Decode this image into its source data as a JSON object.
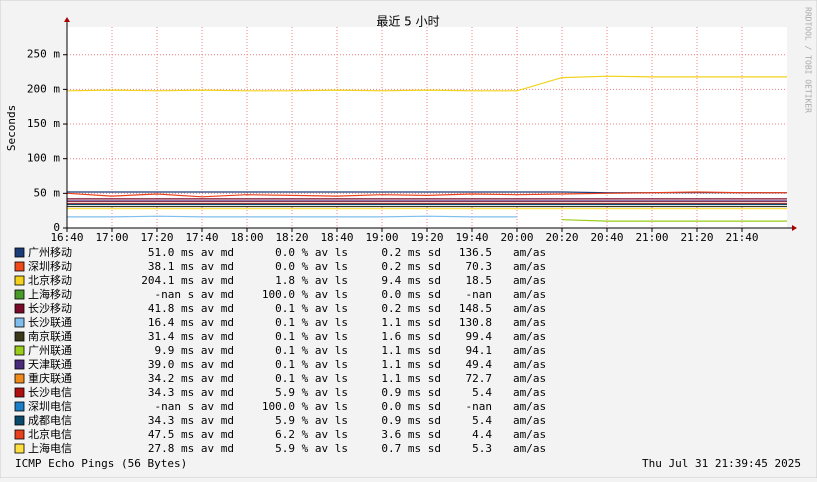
{
  "chart_data": {
    "type": "line",
    "title": "最近 5 小时",
    "y_label": "Seconds",
    "watermark": "RRDTOOL / TOBI OETIKER",
    "footer": "ICMP Echo Pings (56 Bytes)",
    "timestamp": "Thu Jul 31 21:39:45 2025",
    "ratio_unit": "am/as",
    "grid": true,
    "x": [
      "16:40",
      "17:00",
      "17:20",
      "17:40",
      "18:00",
      "18:20",
      "18:40",
      "19:00",
      "19:20",
      "19:40",
      "20:00",
      "20:20",
      "20:40",
      "21:00",
      "21:20",
      "21:40",
      "22:00"
    ],
    "xlim": [
      "16:40",
      "22:00"
    ],
    "xticks": [
      "16:40",
      "17:00",
      "17:20",
      "17:40",
      "18:00",
      "18:20",
      "18:40",
      "19:00",
      "19:20",
      "19:40",
      "20:00",
      "20:20",
      "20:40",
      "21:00",
      "21:20",
      "21:40"
    ],
    "ylim": [
      0,
      0.29
    ],
    "yticks": [
      0,
      {
        "value": 0.05,
        "label": "50 m"
      },
      {
        "value": 0.1,
        "label": "100 m"
      },
      {
        "value": 0.15,
        "label": "150 m"
      },
      {
        "value": 0.2,
        "label": "200 m"
      },
      {
        "value": 0.25,
        "label": "250 m"
      }
    ],
    "series": [
      {
        "name": "广州移动",
        "color": "#1a3c78",
        "median": "51.0 ms av md",
        "loss": "0.0 % av ls",
        "sd": "0.2 ms sd",
        "ratio": "136.5",
        "values": [
          0.052,
          0.052,
          0.052,
          0.052,
          0.052,
          0.052,
          0.052,
          0.052,
          0.052,
          0.052,
          0.052,
          0.052,
          0.051,
          0.051,
          0.051,
          0.051,
          0.051
        ]
      },
      {
        "name": "深圳移动",
        "color": "#f04a1a",
        "median": "38.1 ms av md",
        "loss": "0.0 % av ls",
        "sd": "0.2 ms sd",
        "ratio": "70.3",
        "values": [
          0.038,
          0.038,
          0.038,
          0.038,
          0.038,
          0.038,
          0.038,
          0.038,
          0.038,
          0.038,
          0.038,
          0.038,
          0.038,
          0.038,
          0.038,
          0.038,
          0.038
        ]
      },
      {
        "name": "北京移动",
        "color": "#f2d21c",
        "median": "204.1 ms av md",
        "loss": "1.8 % av ls",
        "sd": "9.4 ms sd",
        "ratio": "18.5",
        "values": [
          0.198,
          0.199,
          0.198,
          0.199,
          0.198,
          0.198,
          0.199,
          0.198,
          0.199,
          0.198,
          0.198,
          0.217,
          0.219,
          0.218,
          0.218,
          0.218,
          0.218
        ]
      },
      {
        "name": "上海移动",
        "color": "#4a9a2a",
        "median": "-nan  s av md",
        "loss": "100.0 % av ls",
        "sd": "0.0 ms sd",
        "ratio": "-nan",
        "values": [
          null,
          null,
          null,
          null,
          null,
          null,
          null,
          null,
          null,
          null,
          null,
          null,
          null,
          null,
          null,
          null,
          null
        ]
      },
      {
        "name": "长沙移动",
        "color": "#7a0a2a",
        "median": "41.8 ms av md",
        "loss": "0.1 % av ls",
        "sd": "0.2 ms sd",
        "ratio": "148.5",
        "values": [
          0.042,
          0.042,
          0.042,
          0.042,
          0.042,
          0.042,
          0.042,
          0.042,
          0.042,
          0.042,
          0.042,
          0.042,
          0.042,
          0.042,
          0.042,
          0.042,
          0.042
        ]
      },
      {
        "name": "长沙联通",
        "color": "#7fbfef",
        "median": "16.4 ms av md",
        "loss": "0.1 % av ls",
        "sd": "1.1 ms sd",
        "ratio": "130.8",
        "values": [
          0.016,
          0.016,
          0.017,
          0.016,
          0.016,
          0.016,
          0.016,
          0.016,
          0.017,
          0.016,
          0.016,
          null,
          null,
          null,
          null,
          null,
          null
        ]
      },
      {
        "name": "南京联通",
        "color": "#3a3a1a",
        "median": "31.4 ms av md",
        "loss": "0.1 % av ls",
        "sd": "1.6 ms sd",
        "ratio": "99.4",
        "values": [
          0.031,
          0.031,
          0.031,
          0.031,
          0.031,
          0.031,
          0.031,
          0.031,
          0.031,
          0.031,
          0.031,
          0.031,
          0.031,
          0.031,
          0.031,
          0.031,
          0.031
        ]
      },
      {
        "name": "广州联通",
        "color": "#9acd1a",
        "median": "9.9 ms av md",
        "loss": "0.1 % av ls",
        "sd": "1.1 ms sd",
        "ratio": "94.1",
        "values": [
          null,
          null,
          null,
          null,
          null,
          null,
          null,
          null,
          null,
          null,
          null,
          0.012,
          0.0099,
          0.0099,
          0.0099,
          0.0099,
          0.0099
        ]
      },
      {
        "name": "天津联通",
        "color": "#4a2a7a",
        "median": "39.0 ms av md",
        "loss": "0.1 % av ls",
        "sd": "1.1 ms sd",
        "ratio": "49.4",
        "values": [
          0.039,
          0.039,
          0.039,
          0.039,
          0.039,
          0.039,
          0.039,
          0.039,
          0.039,
          0.039,
          0.039,
          0.039,
          0.039,
          0.039,
          0.039,
          0.039,
          0.039
        ]
      },
      {
        "name": "重庆联通",
        "color": "#f08a1a",
        "median": "34.2 ms av md",
        "loss": "0.1 % av ls",
        "sd": "1.1 ms sd",
        "ratio": "72.7",
        "values": [
          0.034,
          0.034,
          0.034,
          0.034,
          0.034,
          0.034,
          0.034,
          0.034,
          0.034,
          0.034,
          0.034,
          0.034,
          0.034,
          0.034,
          0.034,
          0.034,
          0.034
        ]
      },
      {
        "name": "长沙电信",
        "color": "#b01010",
        "median": "34.3 ms av md",
        "loss": "5.9 % av ls",
        "sd": "0.9 ms sd",
        "ratio": "5.4",
        "values": [
          0.035,
          0.035,
          0.035,
          0.035,
          0.035,
          0.035,
          0.035,
          0.035,
          0.035,
          0.035,
          0.035,
          0.035,
          0.035,
          0.035,
          0.035,
          0.035,
          0.035
        ]
      },
      {
        "name": "深圳电信",
        "color": "#1a7fc8",
        "median": "-nan  s av md",
        "loss": "100.0 % av ls",
        "sd": "0.0 ms sd",
        "ratio": "-nan",
        "values": [
          null,
          null,
          null,
          null,
          null,
          null,
          null,
          null,
          null,
          null,
          null,
          null,
          null,
          null,
          null,
          null,
          null
        ]
      },
      {
        "name": "成都电信",
        "color": "#0a4a6a",
        "median": "34.3 ms av md",
        "loss": "5.9 % av ls",
        "sd": "0.9 ms sd",
        "ratio": "5.4",
        "values": [
          0.034,
          0.034,
          0.034,
          0.034,
          0.034,
          0.034,
          0.034,
          0.034,
          0.034,
          0.034,
          0.034,
          0.034,
          0.034,
          0.034,
          0.034,
          0.034,
          0.034
        ]
      },
      {
        "name": "北京电信",
        "color": "#e8401c",
        "median": "47.5 ms av md",
        "loss": "6.2 % av ls",
        "sd": "3.6 ms sd",
        "ratio": "4.4",
        "values": [
          0.05,
          0.046,
          0.049,
          0.045,
          0.048,
          0.047,
          0.046,
          0.048,
          0.047,
          0.049,
          0.048,
          0.049,
          0.05,
          0.051,
          0.052,
          0.051,
          0.051
        ]
      },
      {
        "name": "上海电信",
        "color": "#ffe040",
        "median": "27.8 ms av md",
        "loss": "5.9 % av ls",
        "sd": "0.7 ms sd",
        "ratio": "5.3",
        "values": [
          0.028,
          0.028,
          0.028,
          0.028,
          0.028,
          0.028,
          0.028,
          0.028,
          0.028,
          0.028,
          0.028,
          0.028,
          0.028,
          0.028,
          0.028,
          0.028,
          0.028
        ]
      }
    ]
  }
}
